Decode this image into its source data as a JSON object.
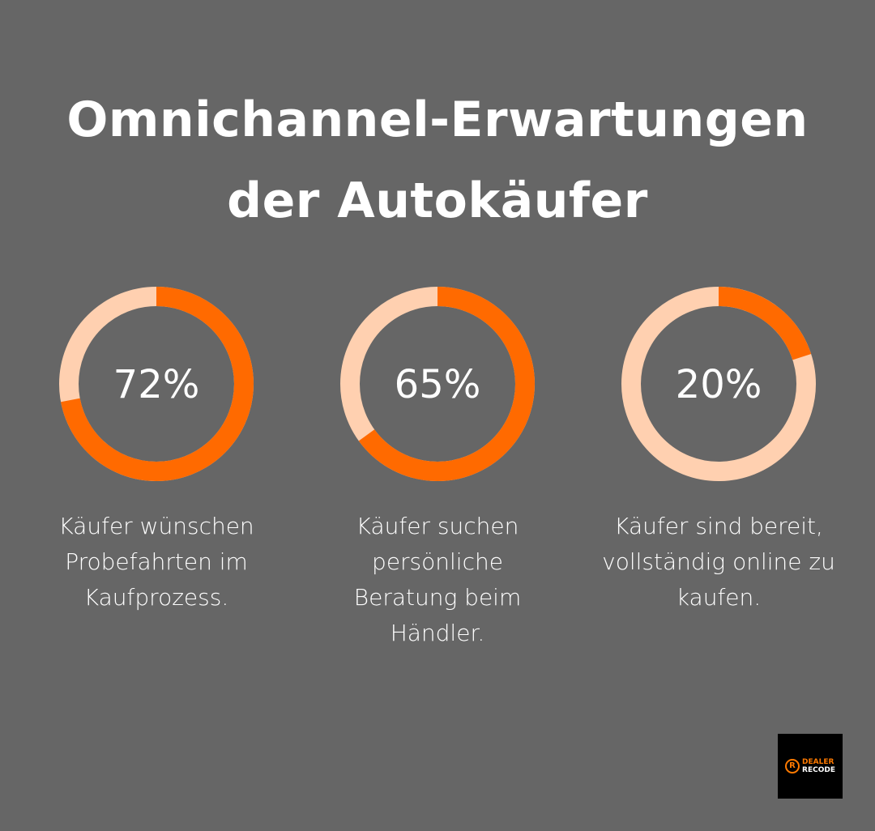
{
  "title_lines": [
    "Omnichannel-Erwartungen",
    "der Autokäufer"
  ],
  "colors": {
    "background": "#666666",
    "filled": "#ff6a00",
    "remainder": "#ffd0b0"
  },
  "chart_data": [
    {
      "type": "pie",
      "variant": "donut",
      "value": 72,
      "label": "72%",
      "caption": "Käufer wünschen Probefahrten im Kaufprozess."
    },
    {
      "type": "pie",
      "variant": "donut",
      "value": 65,
      "label": "65%",
      "caption": "Käufer suchen persönliche Beratung beim Händler."
    },
    {
      "type": "pie",
      "variant": "donut",
      "value": 20,
      "label": "20%",
      "caption": "Käufer sind bereit, vollständig online zu kaufen."
    }
  ],
  "logo": {
    "line1": "DEALER",
    "line2": "RECODE",
    "mark": "R"
  }
}
